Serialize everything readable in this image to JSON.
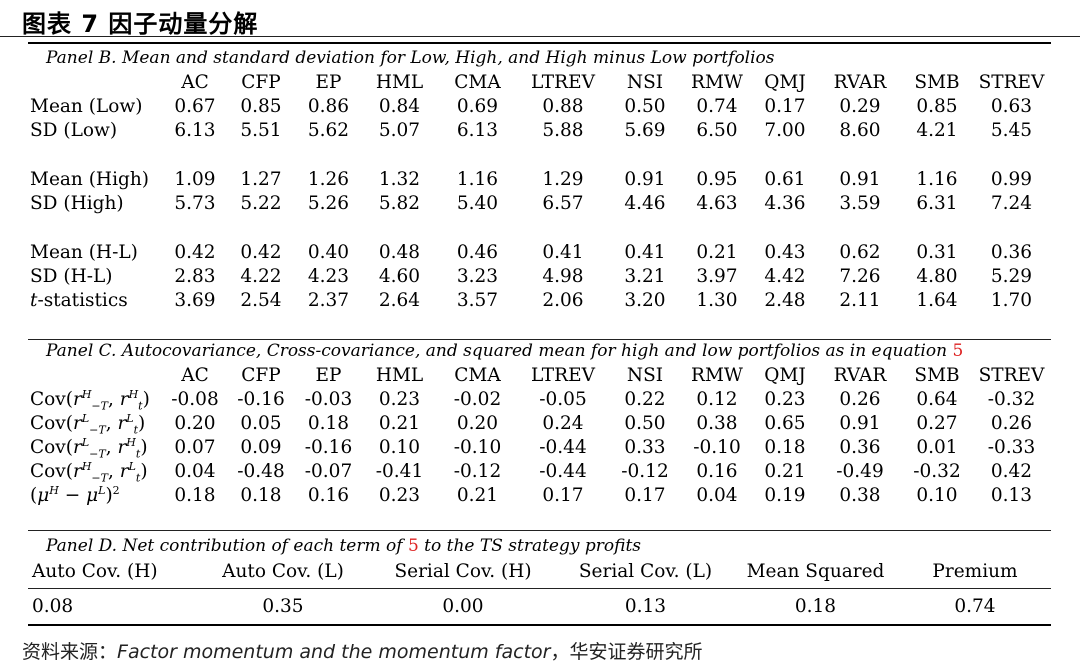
{
  "title": "图表 7 因子动量分解",
  "panel_b": {
    "title": "Panel B. Mean and standard deviation for Low, High, and High minus Low portfolios",
    "headers": [
      "AC",
      "CFP",
      "EP",
      "HML",
      "CMA",
      "LTREV",
      "NSI",
      "RMW",
      "QMJ",
      "RVAR",
      "SMB",
      "STREV"
    ],
    "groups": [
      [
        {
          "label": "Mean (Low)",
          "values": [
            "0.67",
            "0.85",
            "0.86",
            "0.84",
            "0.69",
            "0.88",
            "0.50",
            "0.74",
            "0.17",
            "0.29",
            "0.85",
            "0.63"
          ]
        },
        {
          "label": "SD (Low)",
          "values": [
            "6.13",
            "5.51",
            "5.62",
            "5.07",
            "6.13",
            "5.88",
            "5.69",
            "6.50",
            "7.00",
            "8.60",
            "4.21",
            "5.45"
          ]
        }
      ],
      [
        {
          "label": "Mean (High)",
          "values": [
            "1.09",
            "1.27",
            "1.26",
            "1.32",
            "1.16",
            "1.29",
            "0.91",
            "0.95",
            "0.61",
            "0.91",
            "1.16",
            "0.99"
          ]
        },
        {
          "label": "SD (High)",
          "values": [
            "5.73",
            "5.22",
            "5.26",
            "5.82",
            "5.40",
            "6.57",
            "4.46",
            "4.63",
            "4.36",
            "3.59",
            "6.31",
            "7.24"
          ]
        }
      ],
      [
        {
          "label": "Mean (H-L)",
          "values": [
            "0.42",
            "0.42",
            "0.40",
            "0.48",
            "0.46",
            "0.41",
            "0.41",
            "0.21",
            "0.43",
            "0.62",
            "0.31",
            "0.36"
          ]
        },
        {
          "label": "SD (H-L)",
          "values": [
            "2.83",
            "4.22",
            "4.23",
            "4.60",
            "3.23",
            "4.98",
            "3.21",
            "3.97",
            "4.42",
            "7.26",
            "4.80",
            "5.29"
          ]
        },
        {
          "label": "t-statistics",
          "values": [
            "3.69",
            "2.54",
            "2.37",
            "2.64",
            "3.57",
            "2.06",
            "3.20",
            "1.30",
            "2.48",
            "2.11",
            "1.64",
            "1.70"
          ]
        }
      ]
    ]
  },
  "panel_c": {
    "title": "Panel C. Autocovariance, Cross-covariance, and squared mean for high and low portfolios as in equation",
    "equation_ref": "5",
    "headers": [
      "AC",
      "CFP",
      "EP",
      "HML",
      "CMA",
      "LTREV",
      "NSI",
      "RMW",
      "QMJ",
      "RVAR",
      "SMB",
      "STREV"
    ],
    "rows": [
      {
        "values": [
          "-0.08",
          "-0.16",
          "-0.03",
          "0.23",
          "-0.02",
          "-0.05",
          "0.22",
          "0.12",
          "0.23",
          "0.26",
          "0.64",
          "-0.32"
        ]
      },
      {
        "values": [
          "0.20",
          "0.05",
          "0.18",
          "0.21",
          "0.20",
          "0.24",
          "0.50",
          "0.38",
          "0.65",
          "0.91",
          "0.27",
          "0.26"
        ]
      },
      {
        "values": [
          "0.07",
          "0.09",
          "-0.16",
          "0.10",
          "-0.10",
          "-0.44",
          "0.33",
          "-0.10",
          "0.18",
          "0.36",
          "0.01",
          "-0.33"
        ]
      },
      {
        "values": [
          "0.04",
          "-0.48",
          "-0.07",
          "-0.41",
          "-0.12",
          "-0.44",
          "-0.12",
          "0.16",
          "0.21",
          "-0.49",
          "-0.32",
          "0.42"
        ]
      },
      {
        "values": [
          "0.18",
          "0.18",
          "0.16",
          "0.23",
          "0.21",
          "0.17",
          "0.17",
          "0.04",
          "0.19",
          "0.38",
          "0.10",
          "0.13"
        ]
      }
    ]
  },
  "panel_d": {
    "title_pre": "Panel D. Net contribution of each term of",
    "equation_ref": "5",
    "title_post": "to the TS strategy profits",
    "headers": [
      "Auto Cov. (H)",
      "Auto Cov. (L)",
      "Serial Cov. (H)",
      "Serial Cov. (L)",
      "Mean Squared",
      "Premium"
    ],
    "values": [
      "0.08",
      "0.35",
      "0.00",
      "0.13",
      "0.18",
      "0.74"
    ]
  },
  "source": {
    "prefix": "资料来源：",
    "citation": "Factor momentum and the momentum factor",
    "suffix": "，华安证券研究所"
  }
}
